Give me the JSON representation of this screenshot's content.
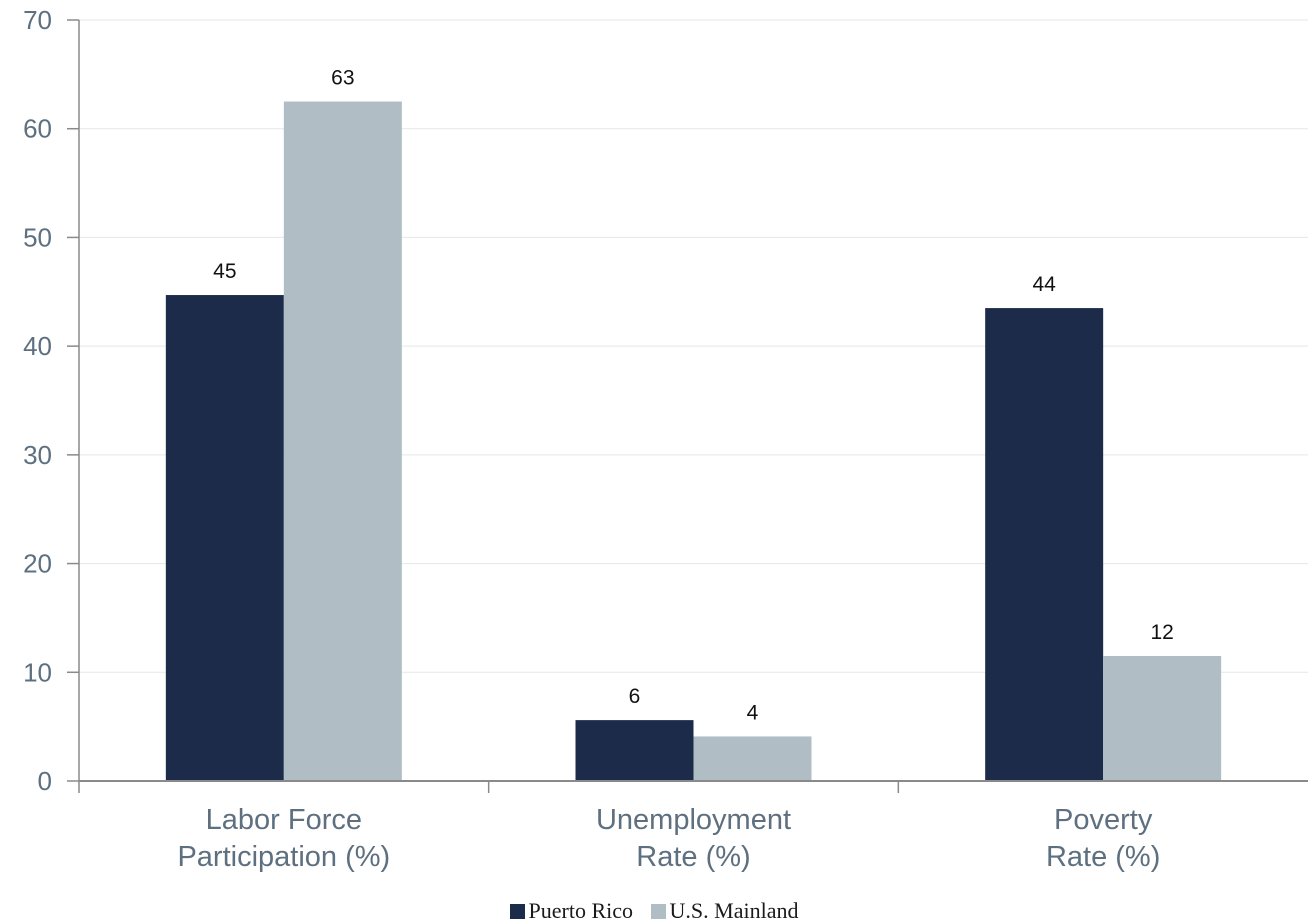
{
  "chart_data": {
    "type": "bar",
    "categories": [
      [
        "Labor Force",
        "Participation (%)"
      ],
      [
        "Unemployment",
        "Rate (%)"
      ],
      [
        "Poverty",
        "Rate (%)"
      ]
    ],
    "series": [
      {
        "name": "Puerto Rico",
        "values": [
          44.7,
          5.6,
          43.5
        ],
        "labels": [
          "45",
          "6",
          "44"
        ],
        "color": "#1c2b49"
      },
      {
        "name": "U.S. Mainland",
        "values": [
          62.5,
          4.1,
          11.5
        ],
        "labels": [
          "63",
          "4",
          "12"
        ],
        "color": "#b0bdc5"
      }
    ],
    "ylim": [
      0,
      70
    ],
    "yticks": [
      0,
      10,
      20,
      30,
      40,
      50,
      60,
      70
    ],
    "ytick_labels": [
      "0",
      "10",
      "20",
      "30",
      "40",
      "50",
      "60",
      "70"
    ],
    "grid": true,
    "legend_position": "bottom-center",
    "gridline_color": "#e3e8ec",
    "axis_color": "#8a8a8a"
  }
}
